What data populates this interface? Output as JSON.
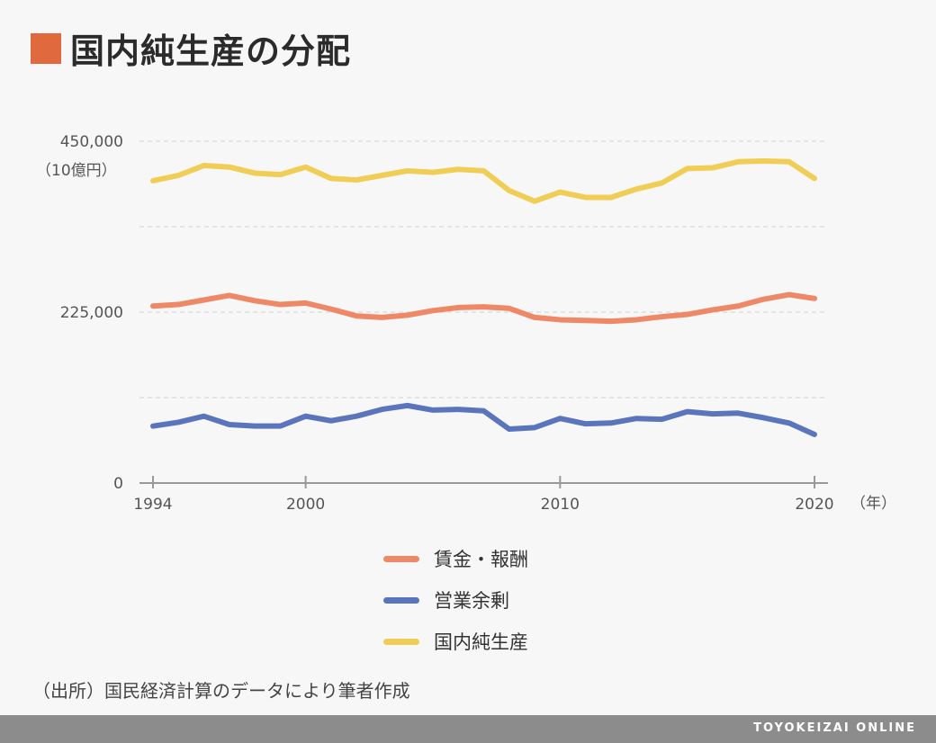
{
  "title": "国内純生産の分配",
  "source_note": "（出所）国民経済計算のデータにより筆者作成",
  "brand": "TOYOKEIZAI ONLINE",
  "colors": {
    "title_mark": "#e06a3d",
    "wages": "#ee8866",
    "operating_surplus": "#5b75bd",
    "net_domestic_product": "#f0cd55",
    "grid": "#d9d9d9"
  },
  "chart_data": {
    "type": "line",
    "y_unit": "（10億円）",
    "x_unit": "（年）",
    "ylim": [
      0,
      450000
    ],
    "y_ticks": [
      {
        "value": 0,
        "label": "0"
      },
      {
        "value": 225000,
        "label": "225,000"
      },
      {
        "value": 450000,
        "label": "450,000"
      }
    ],
    "y_grid": [
      112500,
      225000,
      337500,
      450000
    ],
    "x_ticks": [
      {
        "value": 1994,
        "label": "1994"
      },
      {
        "value": 2000,
        "label": "2000"
      },
      {
        "value": 2010,
        "label": "2010"
      },
      {
        "value": 2020,
        "label": "2020"
      }
    ],
    "x": [
      1994,
      1995,
      1996,
      1997,
      1998,
      1999,
      2000,
      2001,
      2002,
      2003,
      2004,
      2005,
      2006,
      2007,
      2008,
      2009,
      2010,
      2011,
      2012,
      2013,
      2014,
      2015,
      2016,
      2017,
      2018,
      2019,
      2020
    ],
    "legend_position": "bottom",
    "series": [
      {
        "name": "賃金・報酬",
        "key": "wages",
        "values": [
          233000,
          235000,
          241000,
          247000,
          240000,
          235000,
          237000,
          229000,
          220000,
          218000,
          221000,
          227000,
          231000,
          232000,
          230000,
          218000,
          215000,
          214000,
          213000,
          215000,
          219000,
          222000,
          228000,
          233000,
          242000,
          248000,
          243000
        ]
      },
      {
        "name": "営業余剰",
        "key": "operating_surplus",
        "values": [
          75000,
          80000,
          88000,
          77000,
          75000,
          75000,
          88000,
          82000,
          88000,
          97000,
          102000,
          96000,
          97000,
          95000,
          71000,
          73000,
          85000,
          78000,
          79000,
          85000,
          84000,
          94000,
          91000,
          92000,
          86000,
          79000,
          64000
        ]
      },
      {
        "name": "国内純生産",
        "key": "net_domestic_product",
        "values": [
          398000,
          405000,
          418000,
          416000,
          408000,
          406000,
          416000,
          401000,
          399000,
          405000,
          411000,
          409000,
          413000,
          411000,
          385000,
          371000,
          383000,
          376000,
          376000,
          387000,
          395000,
          414000,
          415000,
          423000,
          424000,
          423000,
          401000
        ]
      }
    ]
  }
}
